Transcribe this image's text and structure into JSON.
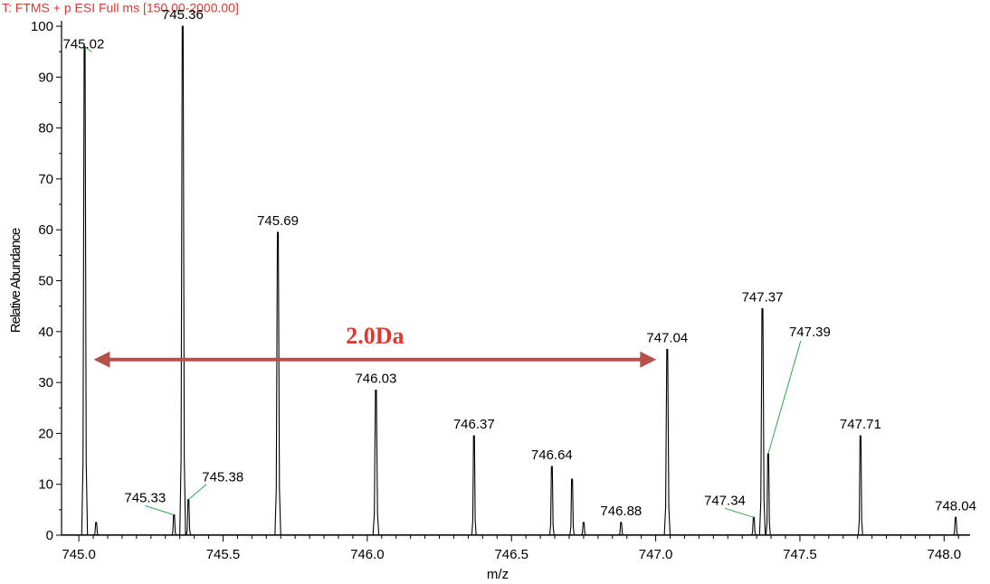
{
  "chart_data": {
    "type": "line",
    "header": "T: FTMS + p ESI Full ms [150.00-2000.00]",
    "xlabel": "m/z",
    "ylabel": "Relative Abundance",
    "xlim": [
      744.94,
      748.09
    ],
    "ylim": [
      0,
      100
    ],
    "x_ticks": [
      745.0,
      745.5,
      746.0,
      746.5,
      747.0,
      747.5,
      748.0
    ],
    "x_tick_labels": [
      "745.0",
      "745.5",
      "746.0",
      "746.5",
      "747.0",
      "747.5",
      "748.0"
    ],
    "y_ticks": [
      0,
      10,
      20,
      30,
      40,
      50,
      60,
      70,
      80,
      90,
      100
    ],
    "y_tick_labels": [
      "0",
      "10",
      "20",
      "30",
      "40",
      "50",
      "60",
      "70",
      "80",
      "90",
      "100"
    ],
    "peaks": [
      {
        "mz": 745.02,
        "intensity": 96,
        "label": "745.02"
      },
      {
        "mz": 745.06,
        "intensity": 2.5,
        "label": ""
      },
      {
        "mz": 745.33,
        "intensity": 4,
        "label": "745.33"
      },
      {
        "mz": 745.36,
        "intensity": 100,
        "label": "745.36"
      },
      {
        "mz": 745.38,
        "intensity": 7,
        "label": "745.38"
      },
      {
        "mz": 745.69,
        "intensity": 59.5,
        "label": "745.69"
      },
      {
        "mz": 746.03,
        "intensity": 28.5,
        "label": "746.03"
      },
      {
        "mz": 746.37,
        "intensity": 19.5,
        "label": "746.37"
      },
      {
        "mz": 746.64,
        "intensity": 13.5,
        "label": "746.64"
      },
      {
        "mz": 746.71,
        "intensity": 11,
        "label": ""
      },
      {
        "mz": 746.75,
        "intensity": 2.5,
        "label": ""
      },
      {
        "mz": 746.88,
        "intensity": 2.5,
        "label": "746.88"
      },
      {
        "mz": 747.04,
        "intensity": 36.5,
        "label": "747.04"
      },
      {
        "mz": 747.34,
        "intensity": 3.5,
        "label": "747.34"
      },
      {
        "mz": 747.37,
        "intensity": 44.5,
        "label": "747.37"
      },
      {
        "mz": 747.39,
        "intensity": 16,
        "label": "747.39"
      },
      {
        "mz": 747.71,
        "intensity": 19.5,
        "label": "747.71"
      },
      {
        "mz": 748.04,
        "intensity": 3.5,
        "label": "748.04"
      }
    ],
    "annotation": {
      "text": "2.0Da",
      "from_mz": 745.02,
      "to_mz": 747.04,
      "y": 34.5,
      "color": "#b5504a",
      "text_color": "#e0382e"
    }
  }
}
